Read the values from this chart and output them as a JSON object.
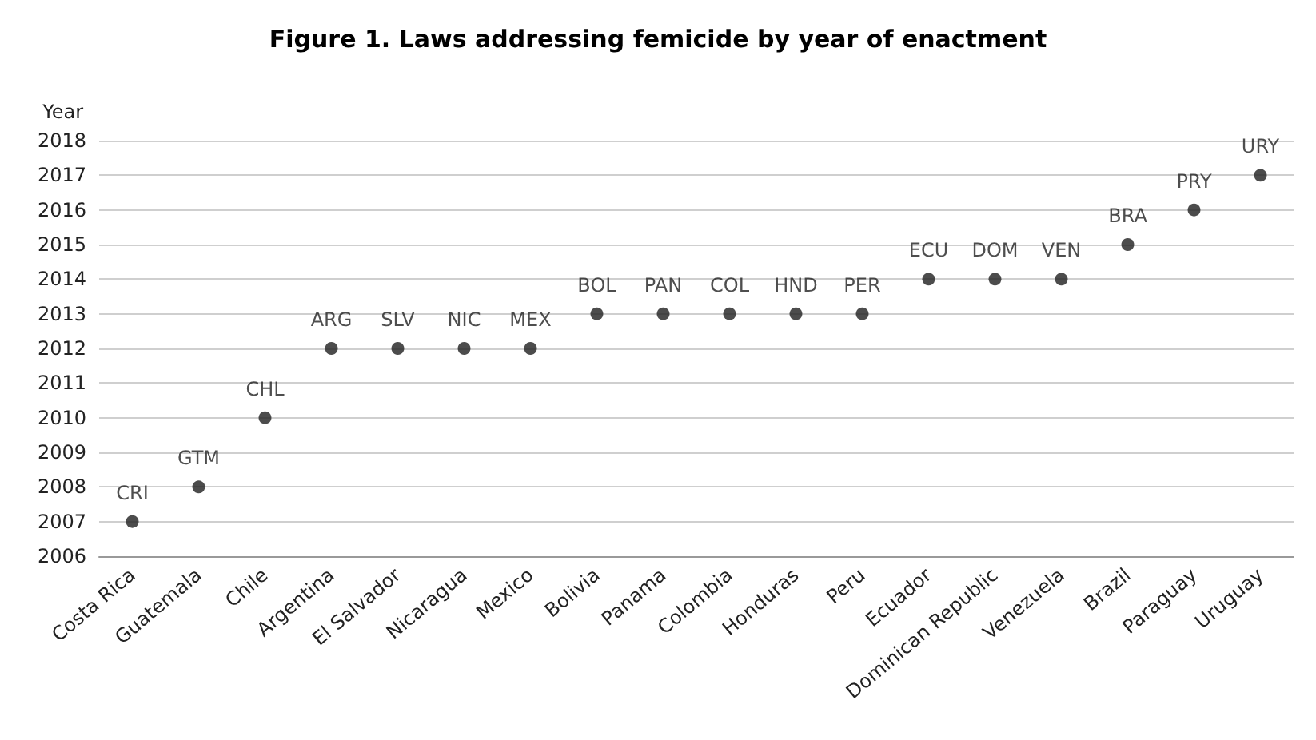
{
  "chart_data": {
    "type": "scatter",
    "title": "Figure 1. Laws addressing femicide by year of enactment",
    "ylabel": "Year",
    "categories": [
      "Costa Rica",
      "Guatemala",
      "Chile",
      "Argentina",
      "El Salvador",
      "Nicaragua",
      "Mexico",
      "Bolivia",
      "Panama",
      "Colombia",
      "Honduras",
      "Peru",
      "Ecuador",
      "Dominican Republic",
      "Venezuela",
      "Brazil",
      "Paraguay",
      "Uruguay"
    ],
    "values": [
      2007,
      2008,
      2010,
      2012,
      2012,
      2012,
      2012,
      2013,
      2013,
      2013,
      2013,
      2013,
      2014,
      2014,
      2014,
      2015,
      2016,
      2017
    ],
    "value_labels": [
      "CRI",
      "GTM",
      "CHL",
      "ARG",
      "SLV",
      "NIC",
      "MEX",
      "BOL",
      "PAN",
      "COL",
      "HND",
      "PER",
      "ECU",
      "DOM",
      "VEN",
      "BRA",
      "PRY",
      "URY"
    ],
    "color": "#1f1f1f",
    "marker": "circle",
    "ylim": [
      2006,
      2018
    ],
    "yticks": [
      2006,
      2007,
      2008,
      2009,
      2010,
      2011,
      2012,
      2013,
      2014,
      2015,
      2016,
      2017,
      2018
    ],
    "grid": "y"
  }
}
